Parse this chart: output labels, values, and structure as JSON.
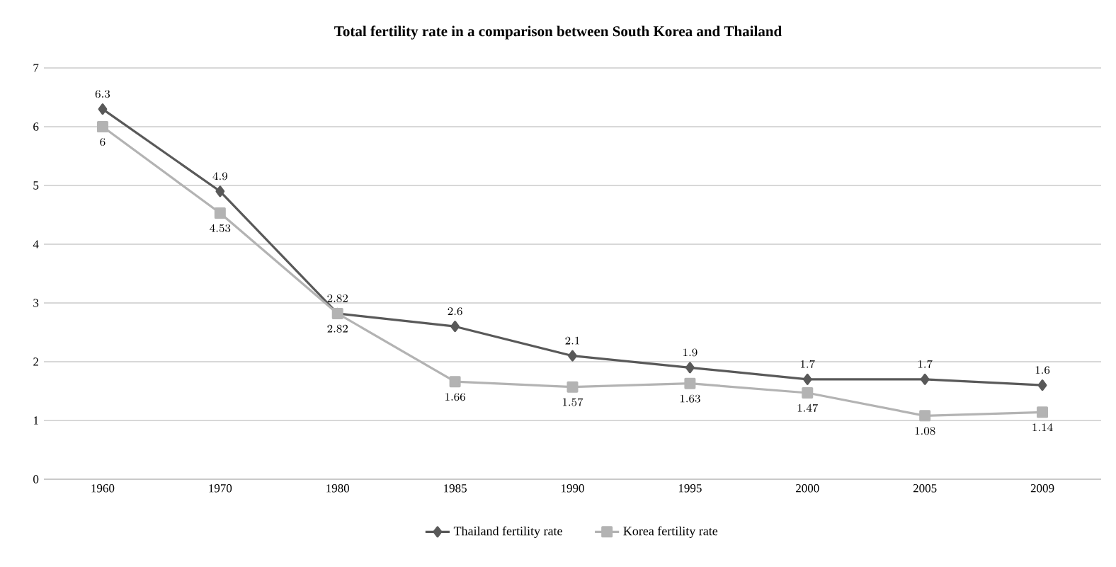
{
  "chart_data": {
    "type": "line",
    "title": "Total fertility rate in a comparison between South Korea and Thailand",
    "categories": [
      "1960",
      "1970",
      "1980",
      "1985",
      "1990",
      "1995",
      "2000",
      "2005",
      "2009"
    ],
    "series": [
      {
        "name": "Thailand fertility rate",
        "color": "#595959",
        "marker": "diamond",
        "values": [
          6.3,
          4.9,
          2.82,
          2.6,
          2.1,
          1.9,
          1.7,
          1.7,
          1.6
        ]
      },
      {
        "name": "Korea fertility rate",
        "color": "#b3b3b3",
        "marker": "square",
        "values": [
          6,
          4.53,
          2.82,
          1.66,
          1.57,
          1.63,
          1.47,
          1.08,
          1.14
        ]
      }
    ],
    "ylim": [
      0,
      7
    ],
    "yticks": [
      0,
      1,
      2,
      3,
      4,
      5,
      6,
      7
    ],
    "grid": "y",
    "legend": "bottom",
    "data_labels": true,
    "line_style": "solid"
  }
}
